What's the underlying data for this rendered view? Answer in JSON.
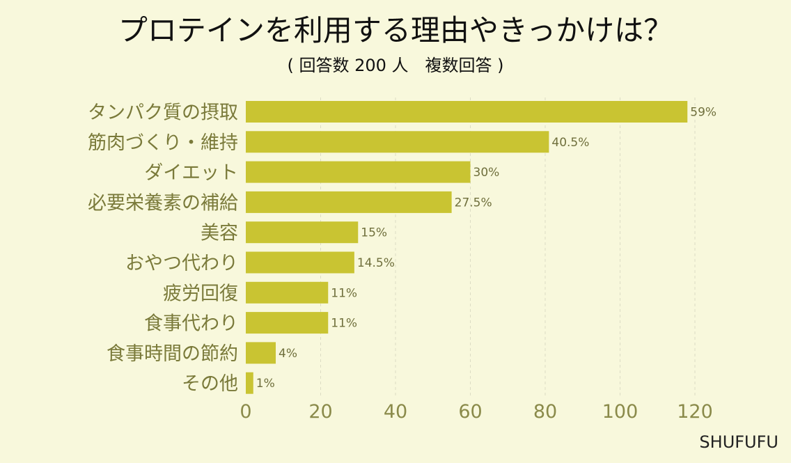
{
  "chart_data": {
    "type": "bar",
    "orientation": "horizontal",
    "title": "プロテインを利用する理由やきっかけは？",
    "subtitle": "( 回答数 200 人　複数回答 )",
    "categories": [
      "タンパク質の摂取",
      "筋肉づくり・維持",
      "ダイエット",
      "必要栄養素の補給",
      "美容",
      "おやつ代わり",
      "疲労回復",
      "食事代わり",
      "食事時間の節約",
      "その他"
    ],
    "values": [
      118,
      81,
      60,
      55,
      30,
      29,
      22,
      22,
      8,
      2
    ],
    "value_labels": [
      "59%",
      "40.5%",
      "30%",
      "27.5%",
      "15%",
      "14.5%",
      "11%",
      "11%",
      "4%",
      "1%"
    ],
    "x_ticks": [
      "0",
      "20",
      "40",
      "60",
      "80",
      "100",
      "120"
    ],
    "xlim": [
      0,
      120
    ],
    "grid": "vertical dashed",
    "bar_color": "#c9c432",
    "background_color": "#f8f8dc"
  },
  "credit": "SHUFUFU"
}
